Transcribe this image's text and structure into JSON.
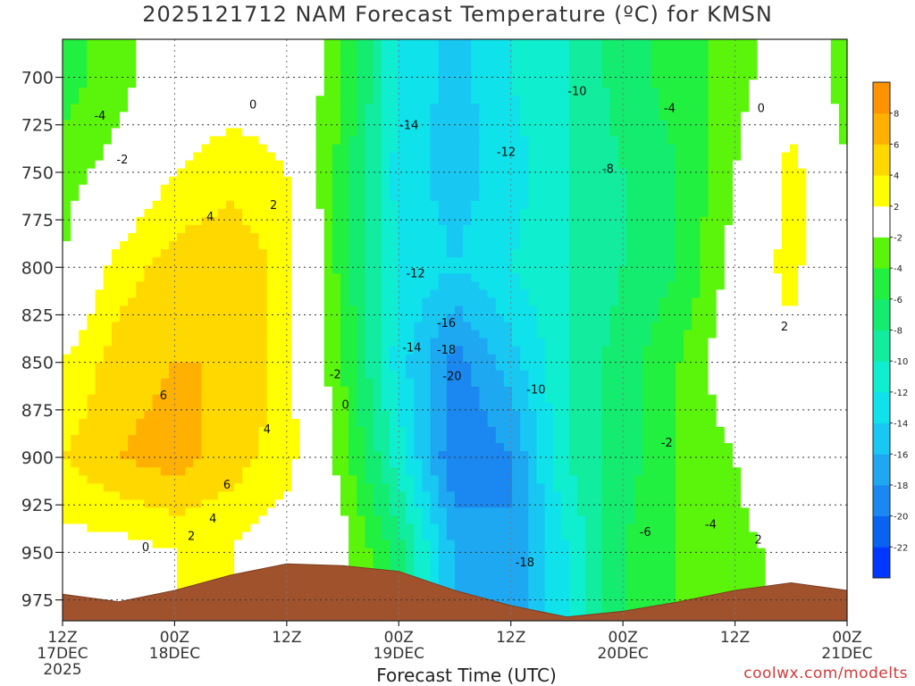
{
  "title": "2025121712 NAM Forecast Temperature (ºC) for KMSN",
  "credit": "coolwx.com/modelts",
  "chart_data": {
    "type": "heatmap",
    "title": "2025121712 NAM Forecast Temperature (ºC) for KMSN",
    "xlabel": "Forecast Time (UTC)",
    "ylabel": "",
    "x_ticks": [
      {
        "hour": 0,
        "lines": [
          "12Z",
          "17DEC",
          "2025"
        ]
      },
      {
        "hour": 12,
        "lines": [
          "00Z",
          "18DEC"
        ]
      },
      {
        "hour": 24,
        "lines": [
          "12Z"
        ]
      },
      {
        "hour": 36,
        "lines": [
          "00Z",
          "19DEC"
        ]
      },
      {
        "hour": 48,
        "lines": [
          "12Z"
        ]
      },
      {
        "hour": 60,
        "lines": [
          "00Z",
          "20DEC"
        ]
      },
      {
        "hour": 72,
        "lines": [
          "12Z"
        ]
      },
      {
        "hour": 84,
        "lines": [
          "00Z",
          "21DEC"
        ]
      }
    ],
    "xlim": [
      0,
      84
    ],
    "y_ticks": [
      700,
      725,
      750,
      775,
      800,
      825,
      850,
      875,
      900,
      925,
      950,
      975
    ],
    "ylim": [
      680,
      986
    ],
    "y_inverted": true,
    "grid": true,
    "colorbar": {
      "bounds": [
        -24,
        -22,
        -20,
        -18,
        -16,
        -14,
        -12,
        -10,
        -8,
        -6,
        -4,
        -2,
        2,
        4,
        6,
        8,
        10
      ],
      "colors": [
        "#0038ff",
        "#0a62f0",
        "#1a88f0",
        "#1fa8f2",
        "#18c8f2",
        "#10e2ec",
        "#10eed0",
        "#12ec9e",
        "#14ec70",
        "#22f040",
        "#5af50a",
        "#ffffff",
        "#ffff00",
        "#ffd800",
        "#ffb000",
        "#ff9200"
      ],
      "tick_labels": [
        "-22",
        "-20",
        "-18",
        "-16",
        "-14",
        "-12",
        "-10",
        "-8",
        "-6",
        "-4",
        "-2",
        "2",
        "4",
        "6",
        "8"
      ]
    },
    "grid_times": [
      0,
      6,
      12,
      18,
      24,
      30,
      36,
      42,
      48,
      54,
      60,
      66,
      72,
      78,
      84
    ],
    "grid_levels": [
      700,
      750,
      800,
      850,
      900,
      950
    ],
    "temperatures": [
      [
        -5,
        -3,
        0,
        1,
        1,
        -4,
        -12,
        -15,
        -12,
        -10,
        -7,
        -5,
        -3,
        0,
        -3
      ],
      [
        -3,
        -1,
        2,
        3,
        2,
        -5,
        -13,
        -15,
        -13,
        -10,
        -8,
        -6,
        -2,
        3,
        -2
      ],
      [
        -2,
        3,
        5,
        6,
        3,
        -5,
        -12,
        -14,
        -12,
        -10,
        -8,
        -6,
        -1,
        3,
        -2
      ],
      [
        2,
        5,
        6,
        6,
        3,
        -4,
        -13,
        -19,
        -15,
        -10,
        -7,
        -4,
        0,
        1,
        -2
      ],
      [
        4,
        6,
        7,
        5,
        3,
        -3,
        -11,
        -20,
        -18,
        -10,
        -7,
        -4,
        -2,
        2,
        -2
      ],
      [
        1,
        1,
        2,
        2,
        0,
        -1,
        -7,
        -16,
        -18,
        -12,
        -6,
        -4,
        -3,
        -1,
        -2
      ]
    ],
    "terrain_pressure": [
      {
        "hour": 0,
        "p": 972
      },
      {
        "hour": 6,
        "p": 976
      },
      {
        "hour": 12,
        "p": 970
      },
      {
        "hour": 18,
        "p": 962
      },
      {
        "hour": 24,
        "p": 956
      },
      {
        "hour": 30,
        "p": 957
      },
      {
        "hour": 36,
        "p": 960
      },
      {
        "hour": 42,
        "p": 970
      },
      {
        "hour": 48,
        "p": 978
      },
      {
        "hour": 54,
        "p": 984
      },
      {
        "hour": 60,
        "p": 981
      },
      {
        "hour": 66,
        "p": 976
      },
      {
        "hour": 72,
        "p": 970
      },
      {
        "hour": 78,
        "p": 966
      },
      {
        "hour": 84,
        "p": 970
      }
    ],
    "contour_labels": [
      {
        "text": "0",
        "hour": 20.4,
        "p": 714
      },
      {
        "text": "-4",
        "hour": 4.0,
        "p": 720
      },
      {
        "text": "-2",
        "hour": 6.4,
        "p": 743
      },
      {
        "text": "4",
        "hour": 15.8,
        "p": 773
      },
      {
        "text": "2",
        "hour": 22.6,
        "p": 767
      },
      {
        "text": "6",
        "hour": 10.8,
        "p": 867
      },
      {
        "text": "4",
        "hour": 21.9,
        "p": 885
      },
      {
        "text": "6",
        "hour": 17.6,
        "p": 914
      },
      {
        "text": "4",
        "hour": 16.1,
        "p": 932
      },
      {
        "text": "2",
        "hour": 13.8,
        "p": 941
      },
      {
        "text": "0",
        "hour": 8.9,
        "p": 947
      },
      {
        "text": "-2",
        "hour": 29.2,
        "p": 856
      },
      {
        "text": "0",
        "hour": 30.3,
        "p": 872
      },
      {
        "text": "-14",
        "hour": 37.1,
        "p": 725
      },
      {
        "text": "-12",
        "hour": 47.5,
        "p": 739
      },
      {
        "text": "-10",
        "hour": 55.1,
        "p": 707
      },
      {
        "text": "-8",
        "hour": 58.4,
        "p": 748
      },
      {
        "text": "-4",
        "hour": 65.0,
        "p": 716
      },
      {
        "text": "0",
        "hour": 74.8,
        "p": 716
      },
      {
        "text": "-12",
        "hour": 37.8,
        "p": 803
      },
      {
        "text": "-16",
        "hour": 41.1,
        "p": 829
      },
      {
        "text": "-14",
        "hour": 37.4,
        "p": 842
      },
      {
        "text": "-18",
        "hour": 41.1,
        "p": 843
      },
      {
        "text": "-20",
        "hour": 41.7,
        "p": 857
      },
      {
        "text": "-10",
        "hour": 50.7,
        "p": 864
      },
      {
        "text": "-2",
        "hour": 64.7,
        "p": 892
      },
      {
        "text": "-6",
        "hour": 62.4,
        "p": 939
      },
      {
        "text": "-4",
        "hour": 69.4,
        "p": 935
      },
      {
        "text": "2",
        "hour": 74.5,
        "p": 943
      },
      {
        "text": "2",
        "hour": 77.3,
        "p": 831
      },
      {
        "text": "-18",
        "hour": 49.5,
        "p": 955
      }
    ]
  }
}
